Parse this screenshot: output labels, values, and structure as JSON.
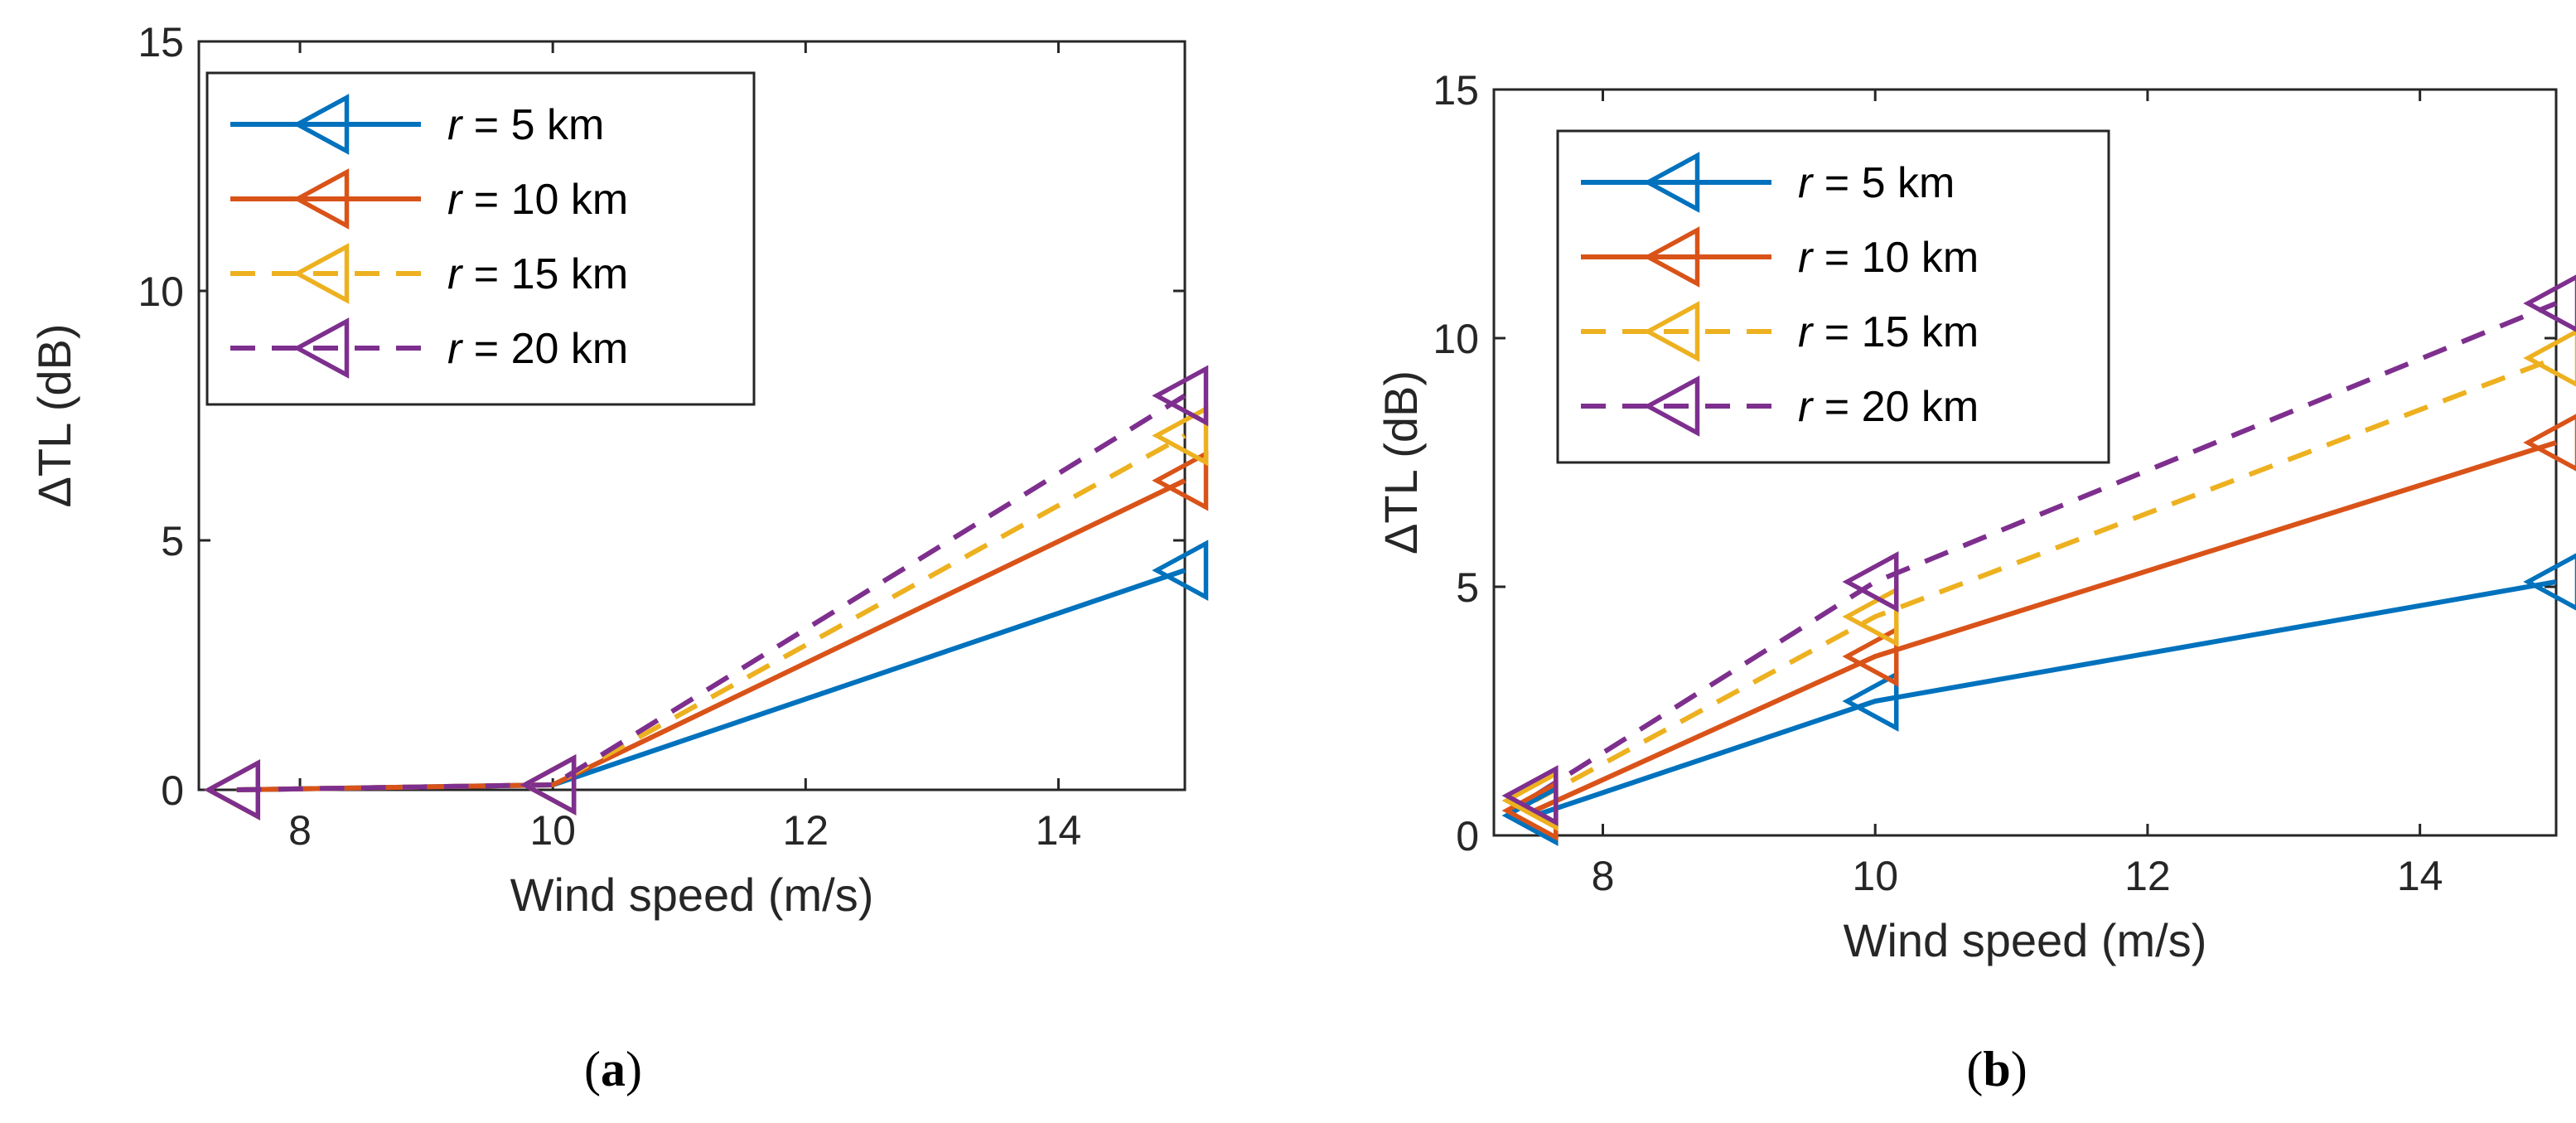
{
  "chart_data": [
    {
      "type": "line",
      "panel_label": "(a)",
      "panel_letter": "a",
      "xlabel": "Wind speed (m/s)",
      "ylabel": "ΔTL (dB)",
      "xlim": [
        7.2,
        15
      ],
      "ylim": [
        0,
        15
      ],
      "xticks": [
        8,
        10,
        12,
        14
      ],
      "yticks": [
        0,
        5,
        10,
        15
      ],
      "legend_position": "top-left",
      "x": [
        7.5,
        10,
        15
      ],
      "series": [
        {
          "name": "r = 5 km",
          "var": "r",
          "rest": " = 5 km",
          "color": "#0072BD",
          "dash": "solid",
          "values": [
            0,
            0.1,
            4.4
          ]
        },
        {
          "name": "r = 10 km",
          "var": "r",
          "rest": " = 10 km",
          "color": "#D95319",
          "dash": "solid",
          "values": [
            0,
            0.1,
            6.2
          ]
        },
        {
          "name": "r = 15 km",
          "var": "r",
          "rest": " = 15 km",
          "color": "#EDB120",
          "dash": "dashed",
          "values": [
            0,
            0.1,
            7.1
          ]
        },
        {
          "name": "r = 20 km",
          "var": "r",
          "rest": " = 20 km",
          "color": "#7E2F8E",
          "dash": "dashed",
          "values": [
            0,
            0.1,
            7.9
          ]
        }
      ]
    },
    {
      "type": "line",
      "panel_label": "(b)",
      "panel_letter": "b",
      "xlabel": "Wind speed (m/s)",
      "ylabel": "ΔTL (dB)",
      "xlim": [
        7.2,
        15
      ],
      "ylim": [
        0,
        15
      ],
      "xticks": [
        8,
        10,
        12,
        14
      ],
      "yticks": [
        0,
        5,
        10,
        15
      ],
      "legend_position": "top-left",
      "x": [
        7.5,
        10,
        15
      ],
      "series": [
        {
          "name": "r = 5 km",
          "var": "r",
          "rest": " = 5 km",
          "color": "#0072BD",
          "dash": "solid",
          "values": [
            0.4,
            2.7,
            5.1
          ]
        },
        {
          "name": "r = 10 km",
          "var": "r",
          "rest": " = 10 km",
          "color": "#D95319",
          "dash": "solid",
          "values": [
            0.5,
            3.6,
            7.9
          ]
        },
        {
          "name": "r = 15 km",
          "var": "r",
          "rest": " = 15 km",
          "color": "#EDB120",
          "dash": "dashed",
          "values": [
            0.7,
            4.4,
            9.6
          ]
        },
        {
          "name": "r = 20 km",
          "var": "r",
          "rest": " = 20 km",
          "color": "#7E2F8E",
          "dash": "dashed",
          "values": [
            0.8,
            5.1,
            10.7
          ]
        }
      ]
    }
  ]
}
